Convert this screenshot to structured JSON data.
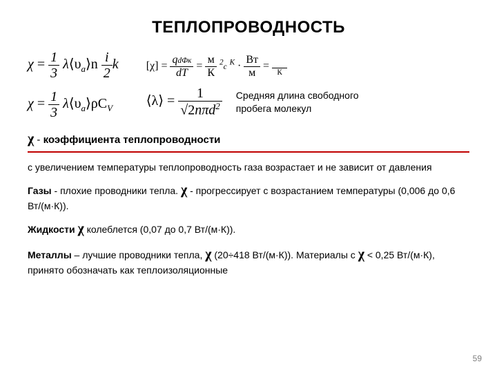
{
  "title": "ТЕПЛОПРОВОДНОСТЬ",
  "formulas": {
    "chi1_lhs": "χ",
    "chi1_rhs_a": "1",
    "chi1_rhs_b": "3",
    "chi1_rhs_tail1": "λ",
    "chi1_rhs_tail2": "⟨υ",
    "chi1_rhs_tail2_sub": "a",
    "chi1_rhs_tail3": "⟩n",
    "chi1_rhs_frac2_num": "i",
    "chi1_rhs_frac2_den": "2",
    "chi1_rhs_tail4": "k",
    "chi2_lhs": "χ",
    "chi2_rhs_a": "1",
    "chi2_rhs_b": "3",
    "chi2_rhs_tail1": "λ",
    "chi2_rhs_tail2": "⟨υ",
    "chi2_rhs_tail2_sub": "a",
    "chi2_rhs_tail3": "⟩ρC",
    "chi2_rhs_tail3_sub": "V",
    "units_lhs": "[χ]",
    "units_eq": "=",
    "units_q": "q",
    "units_dTdx_num": "dФк",
    "units_dTdx_den": "dT",
    "units_frac2_num": "м",
    "units_frac2_den": "К",
    "units_dot": "·",
    "units_frac3_num": "Вт",
    "units_frac3_den": "м",
    "units_small1": "2",
    "units_small2": "с",
    "units_small3": "К",
    "units_small4": "К",
    "lambda_lhs": "⟨λ⟩",
    "lambda_rhs_a": "1",
    "lambda_rhs_b_pre": "√2",
    "lambda_rhs_b_tail": "nπd",
    "lambda_rhs_b_sup": "2",
    "lambda_caption": "Средняя длина свободного пробега молекул"
  },
  "chi_def": {
    "pre": " - ",
    "text": "коэффициента теплопроводности"
  },
  "body": {
    "p1": "с увеличением температуры теплопроводность газа возрастает и не зависит от давления",
    "p2_a": "Газы",
    "p2_b": " - плохие проводники тепла. ",
    "p2_c": " - прогрессирует с возрастанием температуры (0,006 до 0,6 Вт/(м·К)).",
    "p3_a": "Жидкости ",
    "p3_b": " колеблется (0,07 до 0,7 Вт/(м·К)).",
    "p4_a": "Металлы",
    "p4_b": " – лучшие проводники тепла, ",
    "p4_c": " (20÷418 Вт/(м·К)). Материалы с ",
    "p4_d": " < 0,25 Вт/(м·К), принято обозначать как теплоизоляционные"
  },
  "page_number": "59",
  "colors": {
    "rule": "#c00000",
    "page_num": "#7f7f7f"
  }
}
